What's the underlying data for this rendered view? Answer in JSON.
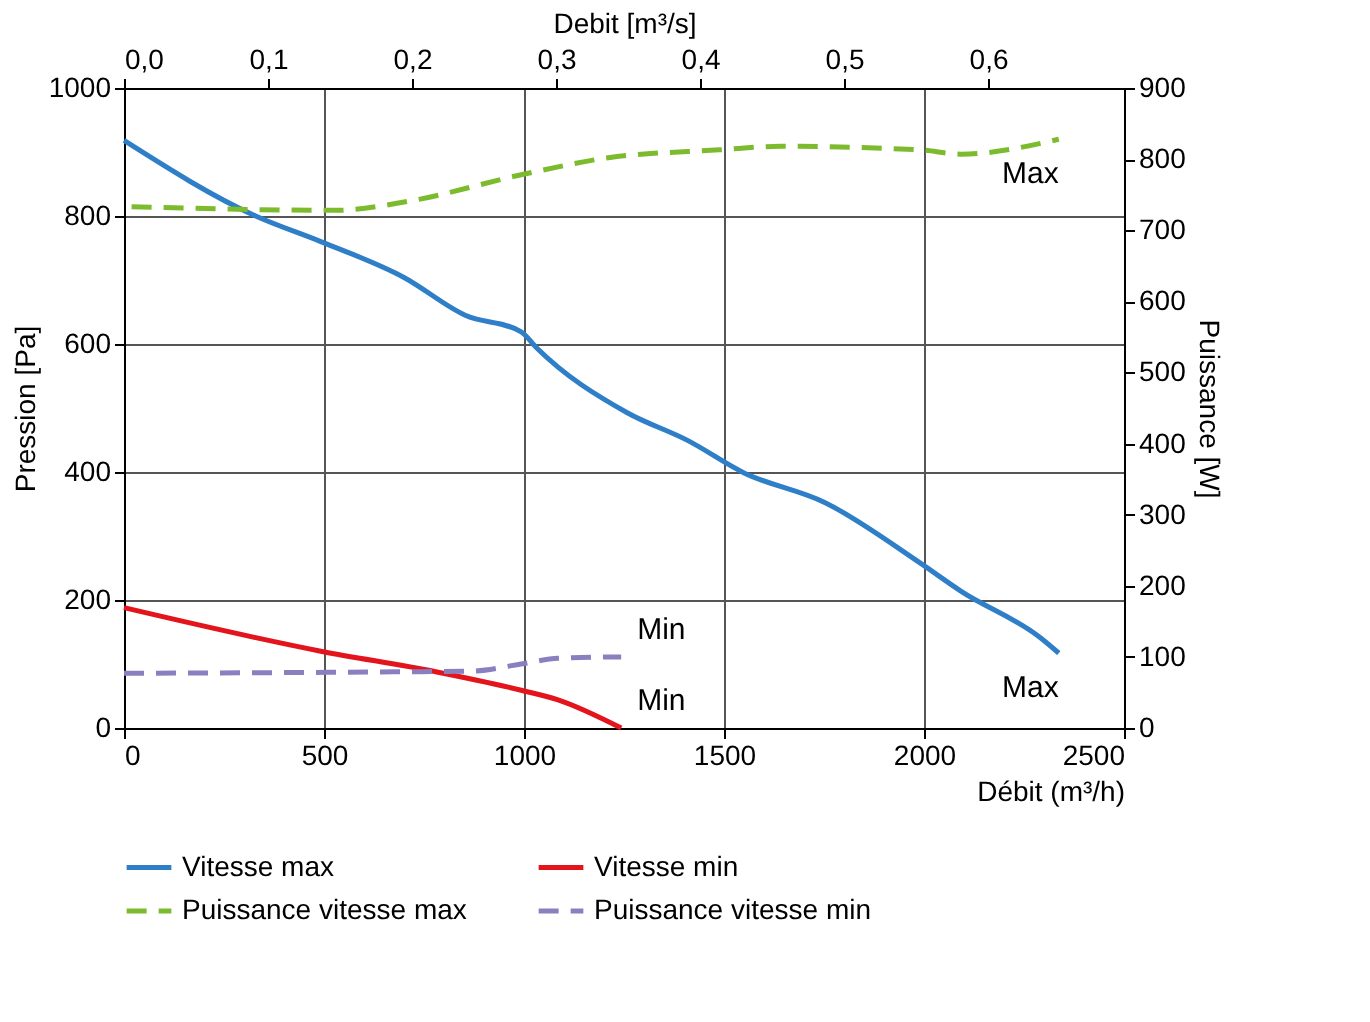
{
  "chart_data": {
    "type": "line",
    "xlabel": "Débit (m³/h)",
    "ylabel": "Pression [Pa]",
    "y2label": "Puissance [W]",
    "x2label": "Debit [m³/s]",
    "xlim": [
      0,
      2500
    ],
    "xticks": [
      0,
      500,
      1000,
      1500,
      2000,
      2500
    ],
    "ylim": [
      0,
      1000
    ],
    "yticks": [
      0,
      200,
      400,
      600,
      800,
      1000
    ],
    "y2lim": [
      0,
      900
    ],
    "y2ticks": [
      0,
      100,
      200,
      300,
      400,
      500,
      600,
      700,
      800,
      900
    ],
    "x2lim": [
      0,
      0.6944
    ],
    "x2ticks": [
      {
        "value": 0,
        "label": "0,0"
      },
      {
        "value": 0.1,
        "label": "0,1"
      },
      {
        "value": 0.2,
        "label": "0,2"
      },
      {
        "value": 0.3,
        "label": "0,3"
      },
      {
        "value": 0.4,
        "label": "0,4"
      },
      {
        "value": 0.5,
        "label": "0,5"
      },
      {
        "value": 0.6,
        "label": "0,6"
      }
    ],
    "grid": true,
    "legend": "bottom",
    "marker": "none",
    "series": [
      {
        "name": "Vitesse max",
        "color": "#2f7fc8",
        "line_style": "solid",
        "x": [
          0,
          329,
          492,
          700,
          853,
          993,
          1030,
          1257,
          1410,
          1549,
          1753,
          1990,
          2092,
          2291,
          2337
        ],
        "values": [
          918,
          800,
          760,
          704,
          645,
          619,
          595,
          493,
          449,
          399,
          352,
          258,
          214,
          141,
          117
        ]
      },
      {
        "name": "Vitesse min",
        "color": "#e3141b",
        "line_style": "solid",
        "x": [
          0,
          492,
          779,
          993,
          1085,
          1243
        ],
        "values": [
          188,
          120,
          88,
          59,
          44,
          0
        ]
      },
      {
        "name": "Puissance vitesse max",
        "color": "#7dbb2e",
        "line_style": "dashed",
        "axis": "y2",
        "x": [
          19,
          529,
          714,
          993,
          1211,
          1489,
          1642,
          1990,
          2092,
          2337
        ],
        "values": [
          733,
          728,
          741,
          778,
          802,
          813,
          818,
          813,
          807,
          828
        ]
      },
      {
        "name": "Puissance vitesse min",
        "color": "#8a80c0",
        "line_style": "dashed",
        "axis": "y2",
        "x": [
          0,
          686,
          872,
          993,
          1085,
          1243
        ],
        "values": [
          77,
          79,
          80,
          90,
          98,
          100
        ]
      }
    ],
    "annotations": [
      "Max",
      "Min",
      "Max",
      "Min"
    ]
  }
}
